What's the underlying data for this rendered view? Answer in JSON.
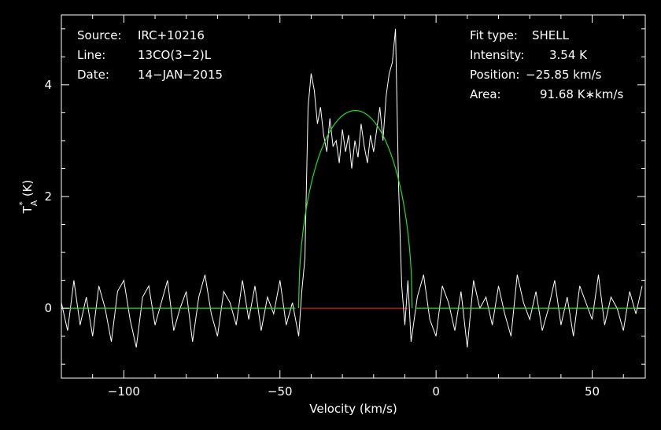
{
  "chart_data": {
    "type": "line",
    "xlabel": "Velocity (km/s)",
    "ylabel_main": "T",
    "ylabel_sup": "*",
    "ylabel_sub": "A",
    "ylabel_unit": "(K)",
    "xlim": [
      -120,
      67
    ],
    "ylim": [
      -1.25,
      5.25
    ],
    "xticks": [
      -100,
      -50,
      0,
      50
    ],
    "xtick_labels": [
      "−100",
      "−50",
      "0",
      "50"
    ],
    "yticks": [
      0,
      2,
      4
    ],
    "ytick_labels": [
      "0",
      "2",
      "4"
    ],
    "grid": false,
    "info_left": [
      {
        "key": "Source:",
        "value": "IRC+10216"
      },
      {
        "key": "Line:",
        "value": "13CO(3−2)L"
      },
      {
        "key": "Date:",
        "value": "14−JAN−2015"
      }
    ],
    "info_right": [
      {
        "key": "Fit type:",
        "value": "SHELL"
      },
      {
        "key": "Intensity:",
        "value": "3.54 K"
      },
      {
        "key": "Position:",
        "value": "−25.85 km/s"
      },
      {
        "key": "Area:",
        "value": "91.68 K∗km/s"
      }
    ],
    "fit": {
      "center": -25.85,
      "peak": 3.54,
      "half_width": 18.2
    },
    "series": [
      {
        "color": "#ffffff",
        "x": [
          -120,
          -118,
          -116,
          -114,
          -112,
          -110,
          -108,
          -106,
          -104,
          -102,
          -100,
          -98,
          -96,
          -94,
          -92,
          -90,
          -88,
          -86,
          -84,
          -82,
          -80,
          -78,
          -76,
          -74,
          -72,
          -70,
          -68,
          -66,
          -64,
          -62,
          -60,
          -58,
          -56,
          -54,
          -52,
          -50,
          -48,
          -46,
          -44,
          -43,
          -42,
          -41,
          -40,
          -39,
          -38,
          -37,
          -36,
          -35,
          -34,
          -33,
          -32,
          -31,
          -30,
          -29,
          -28,
          -27,
          -26,
          -25,
          -24,
          -23,
          -22,
          -21,
          -20,
          -19,
          -18,
          -17,
          -16,
          -15,
          -14,
          -13,
          -12,
          -11,
          -10,
          -9,
          -8,
          -6,
          -4,
          -2,
          0,
          2,
          4,
          6,
          8,
          10,
          12,
          14,
          16,
          18,
          20,
          22,
          24,
          26,
          28,
          30,
          32,
          34,
          36,
          38,
          40,
          42,
          44,
          46,
          48,
          50,
          52,
          54,
          56,
          58,
          60,
          62,
          64,
          66
        ],
        "y": [
          0.1,
          -0.4,
          0.5,
          -0.3,
          0.2,
          -0.5,
          0.4,
          0.0,
          -0.6,
          0.3,
          0.5,
          -0.2,
          -0.7,
          0.2,
          0.4,
          -0.3,
          0.1,
          0.5,
          -0.4,
          0.0,
          0.3,
          -0.6,
          0.2,
          0.6,
          -0.1,
          -0.5,
          0.3,
          0.1,
          -0.3,
          0.5,
          -0.2,
          0.4,
          -0.4,
          0.2,
          -0.1,
          0.5,
          -0.3,
          0.1,
          -0.5,
          0.3,
          0.9,
          3.6,
          4.2,
          3.9,
          3.3,
          3.6,
          3.1,
          2.8,
          3.4,
          2.9,
          3.0,
          2.6,
          3.2,
          2.8,
          3.1,
          2.5,
          3.0,
          2.7,
          3.3,
          2.9,
          2.6,
          3.1,
          2.8,
          3.2,
          3.6,
          3.0,
          3.8,
          4.2,
          4.4,
          5.0,
          2.2,
          0.4,
          -0.3,
          0.5,
          -0.6,
          0.2,
          0.6,
          -0.2,
          -0.5,
          0.4,
          0.1,
          -0.4,
          0.3,
          -0.7,
          0.5,
          0.0,
          0.2,
          -0.3,
          0.4,
          -0.1,
          -0.5,
          0.6,
          0.1,
          -0.2,
          0.3,
          -0.4,
          0.0,
          0.5,
          -0.3,
          0.2,
          -0.5,
          0.4,
          0.1,
          -0.2,
          0.6,
          -0.3,
          0.2,
          0.0,
          -0.4,
          0.3,
          -0.1,
          0.4
        ]
      }
    ]
  }
}
